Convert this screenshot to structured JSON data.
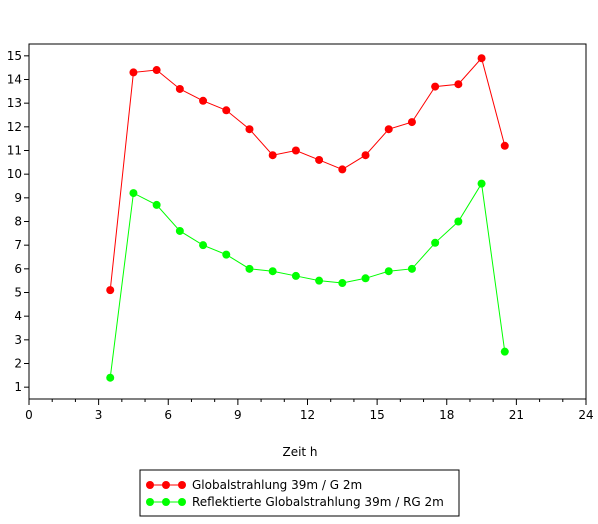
{
  "chart_data": {
    "type": "line",
    "xlabel": "Zeit h",
    "ylabel": "",
    "xlim": [
      0,
      24
    ],
    "ylim": [
      0.5,
      15.5
    ],
    "x_ticks": [
      0,
      3,
      6,
      9,
      12,
      15,
      18,
      21,
      24
    ],
    "y_ticks": [
      1,
      2,
      3,
      4,
      5,
      6,
      7,
      8,
      9,
      10,
      11,
      12,
      13,
      14,
      15
    ],
    "x": [
      3.5,
      4.5,
      5.5,
      6.5,
      7.5,
      8.5,
      9.5,
      10.5,
      11.5,
      12.5,
      13.5,
      14.5,
      15.5,
      16.5,
      17.5,
      18.5,
      19.5,
      20.5
    ],
    "series": [
      {
        "name": "Globalstrahlung 39m / G 2m",
        "color": "#ff0000",
        "values": [
          5.1,
          14.3,
          14.4,
          13.6,
          13.1,
          12.7,
          11.9,
          10.8,
          11.0,
          10.6,
          10.2,
          10.8,
          11.9,
          12.2,
          13.7,
          13.8,
          14.9,
          11.2
        ]
      },
      {
        "name": "Reflektierte Globalstrahlung 39m / RG 2m",
        "color": "#00ff00",
        "values": [
          1.4,
          9.2,
          8.7,
          7.6,
          7.0,
          6.6,
          6.0,
          5.9,
          5.7,
          5.5,
          5.4,
          5.6,
          5.9,
          6.0,
          7.1,
          8.0,
          9.6,
          2.5
        ]
      }
    ],
    "grid": false,
    "legend_position": "bottom"
  }
}
